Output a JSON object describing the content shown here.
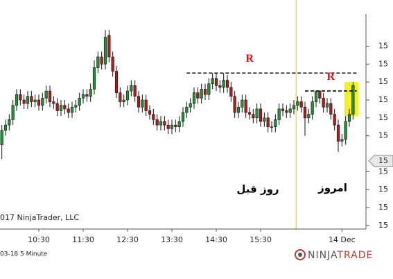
{
  "chart_data": {
    "type": "candlestick",
    "xlim": [
      -0.5,
      98.5
    ],
    "ylim": [
      -0.2,
      11.8
    ],
    "xticks": [
      {
        "value": 10,
        "label": "10:30"
      },
      {
        "value": 22,
        "label": "11:30"
      },
      {
        "value": 34,
        "label": "12:30"
      },
      {
        "value": 46,
        "label": "13:30"
      },
      {
        "value": 58,
        "label": "14:30"
      },
      {
        "value": 70,
        "label": "15:30"
      },
      {
        "value": 92,
        "label": "14 Dec"
      }
    ],
    "yticks": [
      {
        "value": 0,
        "label": "15"
      },
      {
        "value": 1,
        "label": "15"
      },
      {
        "value": 2,
        "label": "15"
      },
      {
        "value": 3,
        "label": "15"
      },
      {
        "value": 5,
        "label": "15"
      },
      {
        "value": 6,
        "label": "15"
      },
      {
        "value": 7,
        "label": "15"
      },
      {
        "value": 8,
        "label": "15"
      },
      {
        "value": 9,
        "label": "15"
      },
      {
        "value": 10,
        "label": "15"
      }
    ],
    "up_color": "#23913a",
    "down_color": "#b01c1c",
    "open": [
      4.5,
      5.3,
      5.6,
      5.9,
      6.7,
      7.3,
      7.0,
      6.8,
      7.2,
      6.9,
      7.0,
      6.7,
      7.1,
      7.5,
      6.9,
      6.8,
      6.4,
      6.7,
      6.5,
      6.3,
      6.6,
      6.7,
      7.1,
      7.3,
      7.2,
      7.6,
      8.8,
      9.4,
      9.0,
      10.6,
      9.4,
      8.6,
      7.4,
      6.9,
      7.0,
      7.5,
      7.8,
      7.2,
      6.6,
      7.0,
      6.4,
      6.2,
      5.9,
      5.6,
      5.8,
      5.6,
      5.4,
      5.6,
      5.5,
      5.8,
      6.3,
      6.6,
      6.8,
      7.4,
      7.1,
      7.6,
      7.3,
      7.9,
      8.2,
      7.8,
      7.7,
      8.1,
      7.7,
      7.2,
      6.3,
      6.6,
      7.0,
      6.3,
      6.2,
      6.0,
      6.5,
      5.8,
      6.0,
      5.5,
      5.5,
      5.9,
      6.5,
      6.4,
      6.3,
      6.5,
      6.7,
      6.9,
      6.6,
      6.0,
      6.2,
      6.9,
      7.5,
      7.1,
      6.6,
      6.8,
      6.2,
      5.6,
      4.7,
      4.8,
      5.8,
      6.2
    ],
    "high": [
      5.6,
      5.9,
      6.2,
      7.0,
      7.6,
      7.6,
      7.3,
      7.5,
      7.5,
      7.3,
      7.3,
      7.4,
      7.8,
      7.8,
      7.2,
      7.1,
      7.0,
      7.0,
      6.8,
      6.9,
      7.0,
      7.4,
      7.6,
      7.6,
      7.9,
      9.2,
      9.7,
      9.7,
      10.9,
      10.9,
      9.7,
      8.9,
      7.7,
      7.3,
      7.8,
      8.1,
      8.1,
      7.5,
      7.3,
      7.3,
      6.7,
      6.5,
      6.2,
      6.1,
      6.1,
      5.9,
      5.9,
      5.9,
      6.1,
      6.6,
      6.9,
      7.1,
      7.7,
      7.7,
      7.9,
      7.9,
      8.2,
      8.5,
      8.5,
      8.1,
      8.5,
      8.4,
      8.0,
      7.5,
      6.9,
      7.3,
      7.3,
      6.6,
      6.5,
      6.8,
      6.8,
      6.3,
      6.3,
      5.8,
      6.2,
      6.8,
      6.8,
      6.7,
      6.8,
      7.0,
      7.2,
      7.2,
      6.9,
      6.5,
      7.2,
      7.5,
      7.5,
      7.4,
      7.1,
      7.1,
      6.5,
      5.9,
      5.1,
      6.1,
      6.5,
      8.0
    ],
    "low": [
      3.7,
      5.0,
      5.3,
      5.6,
      6.4,
      6.7,
      6.5,
      6.5,
      6.6,
      6.6,
      6.4,
      6.4,
      6.8,
      6.6,
      6.5,
      6.1,
      6.1,
      6.2,
      6.0,
      6.0,
      6.3,
      6.4,
      6.8,
      6.9,
      6.9,
      7.3,
      8.5,
      8.7,
      8.7,
      9.1,
      8.3,
      7.1,
      6.6,
      6.6,
      6.7,
      7.2,
      6.9,
      6.3,
      6.3,
      6.1,
      5.9,
      5.6,
      5.3,
      5.3,
      5.3,
      5.1,
      5.1,
      5.2,
      5.2,
      5.5,
      6.0,
      6.3,
      6.5,
      6.8,
      6.8,
      7.0,
      7.0,
      7.6,
      7.5,
      7.4,
      7.4,
      7.4,
      6.9,
      6.0,
      6.0,
      6.3,
      6.0,
      5.9,
      5.7,
      5.7,
      5.5,
      5.5,
      5.2,
      5.2,
      5.2,
      5.6,
      6.1,
      6.0,
      6.0,
      6.2,
      6.4,
      6.3,
      5.0,
      5.7,
      5.9,
      6.6,
      6.8,
      6.3,
      6.3,
      5.9,
      5.3,
      4.1,
      4.4,
      4.5,
      5.5,
      5.9
    ],
    "close": [
      5.3,
      5.6,
      5.9,
      6.7,
      7.3,
      7.0,
      6.8,
      7.2,
      6.9,
      7.0,
      6.7,
      7.1,
      7.5,
      6.9,
      6.8,
      6.4,
      6.7,
      6.5,
      6.3,
      6.6,
      6.7,
      7.1,
      7.3,
      7.2,
      7.6,
      8.8,
      9.4,
      9.0,
      10.5,
      9.4,
      8.6,
      7.4,
      6.9,
      7.0,
      7.5,
      7.8,
      7.2,
      6.6,
      7.0,
      6.4,
      6.2,
      5.9,
      5.6,
      5.8,
      5.6,
      5.4,
      5.6,
      5.5,
      5.8,
      6.3,
      6.6,
      6.8,
      7.4,
      7.1,
      7.6,
      7.3,
      7.9,
      8.2,
      7.8,
      7.7,
      8.1,
      7.7,
      7.2,
      6.3,
      6.6,
      7.0,
      6.3,
      6.2,
      6.0,
      6.5,
      5.8,
      6.0,
      5.5,
      5.5,
      5.9,
      6.5,
      6.4,
      6.3,
      6.5,
      6.7,
      6.9,
      6.6,
      6.0,
      6.2,
      6.9,
      7.5,
      7.1,
      6.6,
      6.8,
      6.2,
      5.6,
      4.7,
      4.8,
      5.8,
      6.2,
      7.8
    ],
    "levels": [
      {
        "label": "R",
        "value": 8.5,
        "x": [
          50,
          96
        ]
      },
      {
        "label": "R",
        "value": 7.5,
        "x": [
          82,
          96
        ]
      }
    ],
    "session_break_x": 79.6,
    "session_break_color": "#f0c020",
    "highlight": {
      "x": [
        92.7,
        96.5
      ],
      "y": [
        6.1,
        8.0
      ],
      "color": "#f5f020"
    },
    "price_marker": {
      "value": 3.6,
      "label": "15"
    },
    "annotations": [
      "روز قبل",
      "امروز"
    ],
    "copyright": "017 NinjaTrader, LLC",
    "instrument": "03-18 5 Minute",
    "logo": [
      "NINJA",
      "TRADE"
    ]
  }
}
